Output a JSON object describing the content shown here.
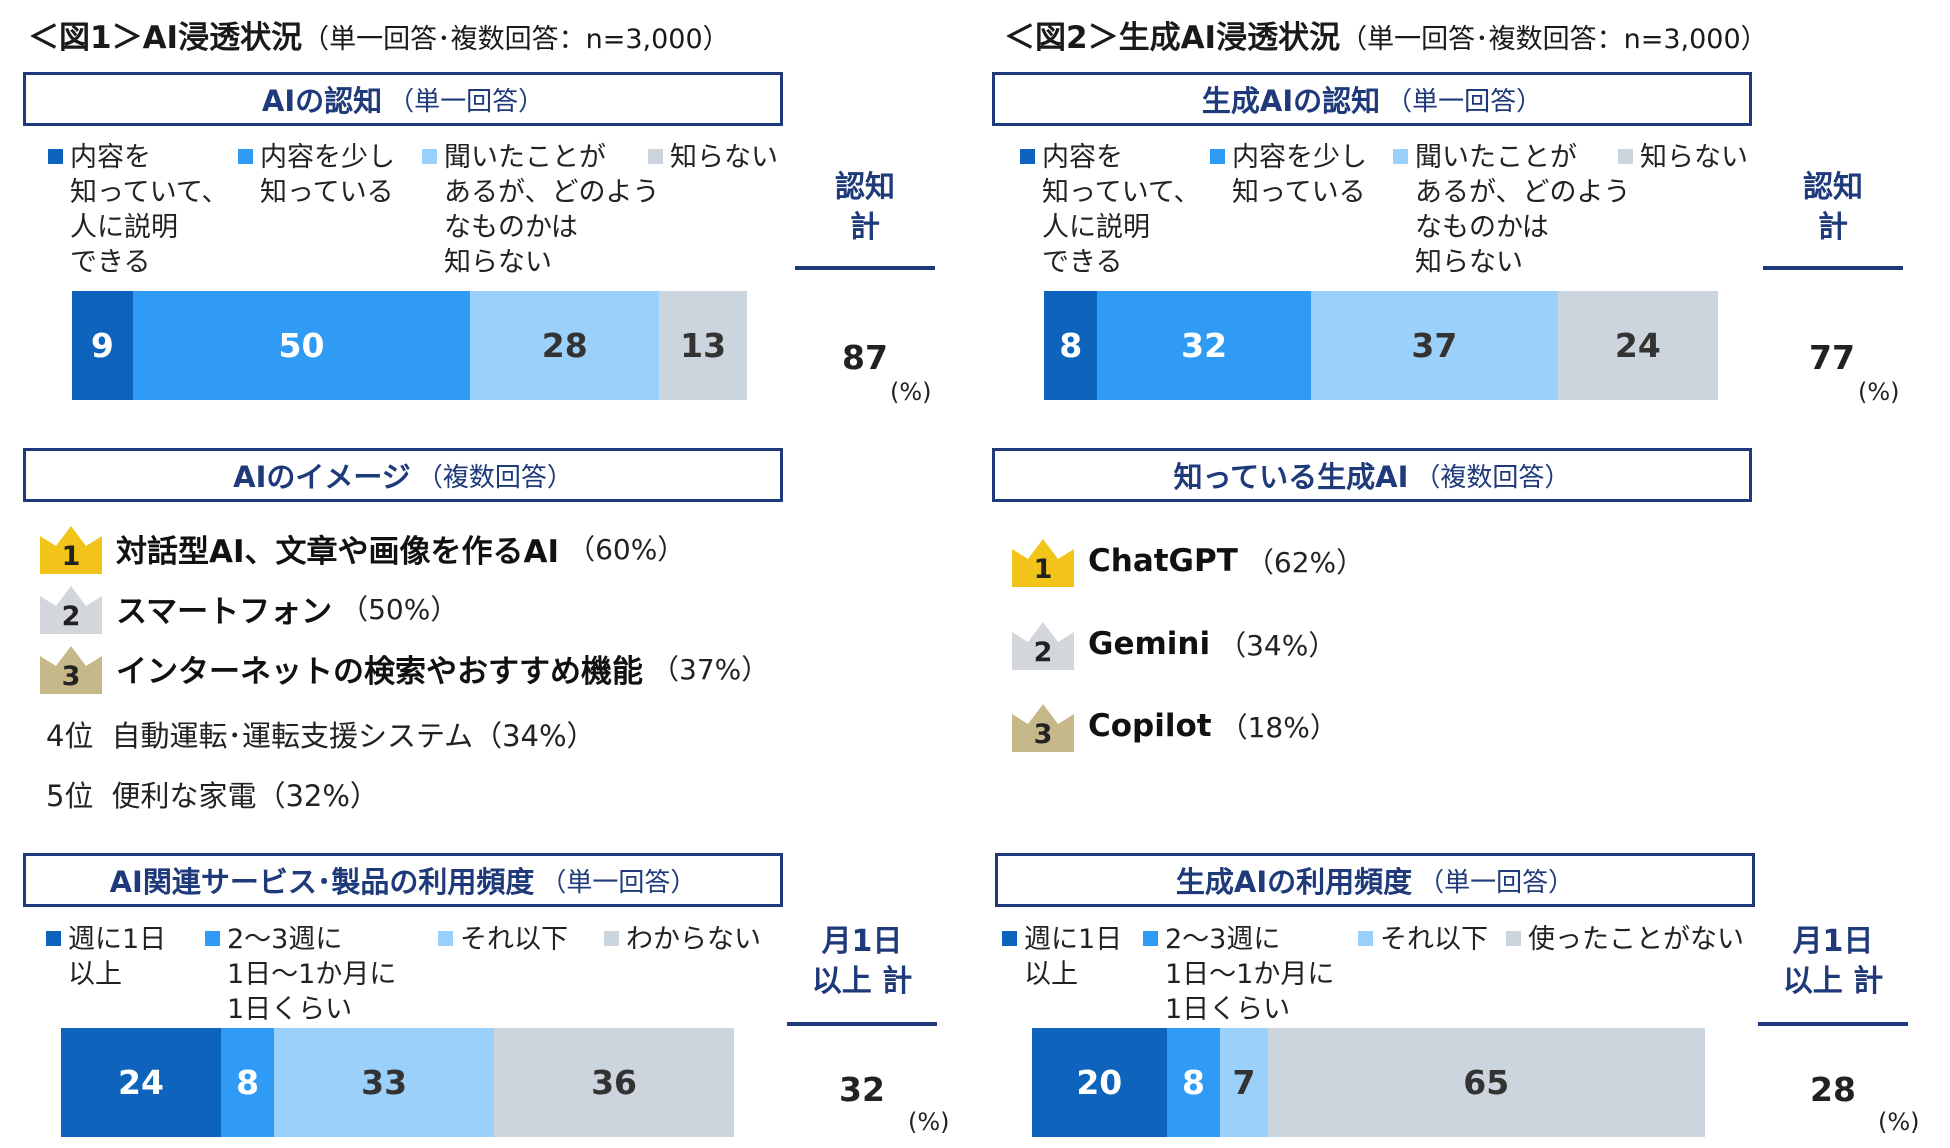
{
  "colors": {
    "navy": "#1f3a7a",
    "c1": "#0e63bd",
    "c2": "#2f9bf5",
    "c3": "#9bd0fb",
    "c4": "#ccd4dd",
    "gold": "#f2c318",
    "silver": "#d3d6da",
    "bronze": "#c7b88a"
  },
  "fig1": {
    "title": "＜図1＞AI浸透状況",
    "subtitle": "（単一回答･複数回答：n=3,000）",
    "awareness": {
      "header": "AIの認知",
      "note": "（単一回答）",
      "legend": [
        "内容を\n知っていて、\n人に説明\nできる",
        "内容を少し\n知っている",
        "聞いたことが\nあるが、どのよう\nなものかは\n知らない",
        "知らない"
      ],
      "total_label": "認知\n計",
      "total": "87",
      "unit": "(%)"
    },
    "image": {
      "header": "AIのイメージ",
      "note": "（複数回答）",
      "top": [
        {
          "rank": "1",
          "label": "対話型AI、文章や画像を作るAI",
          "pct": "（60%）"
        },
        {
          "rank": "2",
          "label": "スマートフォン",
          "pct": "（50%）"
        },
        {
          "rank": "3",
          "label": "インターネットの検索やおすすめ機能",
          "pct": "（37%）"
        }
      ],
      "others": [
        {
          "rank": "4位",
          "label": "自動運転･運転支援システム（34%）"
        },
        {
          "rank": "5位",
          "label": "便利な家電（32%）"
        }
      ]
    },
    "usage": {
      "header": "AI関連サービス･製品の利用頻度",
      "note": "（単一回答）",
      "legend": [
        "週に1日\n以上",
        "2～3週に\n1日～1か月に\n1日くらい",
        "それ以下",
        "わからない"
      ],
      "total_label": "月1日\n以上 計",
      "total": "32",
      "unit": "(%)"
    }
  },
  "fig2": {
    "title": "＜図2＞生成AI浸透状況",
    "subtitle": "（単一回答･複数回答：n=3,000）",
    "awareness": {
      "header": "生成AIの認知",
      "note": "（単一回答）",
      "legend": [
        "内容を\n知っていて、\n人に説明\nできる",
        "内容を少し\n知っている",
        "聞いたことが\nあるが、どのよう\nなものかは\n知らない",
        "知らない"
      ],
      "total_label": "認知\n計",
      "total": "77",
      "unit": "(%)"
    },
    "known": {
      "header": "知っている生成AI",
      "note": "（複数回答）",
      "top": [
        {
          "rank": "1",
          "label": "ChatGPT",
          "pct": "（62%）"
        },
        {
          "rank": "2",
          "label": "Gemini",
          "pct": "（34%）"
        },
        {
          "rank": "3",
          "label": "Copilot",
          "pct": "（18%）"
        }
      ]
    },
    "usage": {
      "header": "生成AIの利用頻度",
      "note": "（単一回答）",
      "legend": [
        "週に1日\n以上",
        "2～3週に\n1日～1か月に\n1日くらい",
        "それ以下",
        "使ったことがない"
      ],
      "total_label": "月1日\n以上 計",
      "total": "28",
      "unit": "(%)"
    }
  },
  "chart_data": [
    {
      "type": "bar",
      "stacked": true,
      "orientation": "horizontal",
      "title": "AIの認知（単一回答）",
      "series": [
        {
          "name": "内容を知っていて、人に説明できる",
          "values": [
            9
          ]
        },
        {
          "name": "内容を少し知っている",
          "values": [
            50
          ]
        },
        {
          "name": "聞いたことがあるが、どのようなものかは知らない",
          "values": [
            28
          ]
        },
        {
          "name": "知らない",
          "values": [
            13
          ]
        }
      ]
    },
    {
      "type": "bar",
      "stacked": true,
      "orientation": "horizontal",
      "title": "AI関連サービス･製品の利用頻度（単一回答）",
      "series": [
        {
          "name": "週に1日以上",
          "values": [
            24
          ]
        },
        {
          "name": "2～3週に1日～1か月に1日くらい",
          "values": [
            8
          ]
        },
        {
          "name": "それ以下",
          "values": [
            33
          ]
        },
        {
          "name": "わからない",
          "values": [
            36
          ]
        }
      ]
    },
    {
      "type": "bar",
      "stacked": true,
      "orientation": "horizontal",
      "title": "生成AIの認知（単一回答）",
      "series": [
        {
          "name": "内容を知っていて、人に説明できる",
          "values": [
            8
          ]
        },
        {
          "name": "内容を少し知っている",
          "values": [
            32
          ]
        },
        {
          "name": "聞いたことがあるが、どのようなものかは知らない",
          "values": [
            37
          ]
        },
        {
          "name": "知らない",
          "values": [
            24
          ]
        }
      ]
    },
    {
      "type": "bar",
      "stacked": true,
      "orientation": "horizontal",
      "title": "生成AIの利用頻度（単一回答）",
      "series": [
        {
          "name": "週に1日以上",
          "values": [
            20
          ]
        },
        {
          "name": "2～3週に1日～1か月に1日くらい",
          "values": [
            8
          ]
        },
        {
          "name": "それ以下",
          "values": [
            7
          ]
        },
        {
          "name": "使ったことがない",
          "values": [
            65
          ]
        }
      ]
    }
  ]
}
